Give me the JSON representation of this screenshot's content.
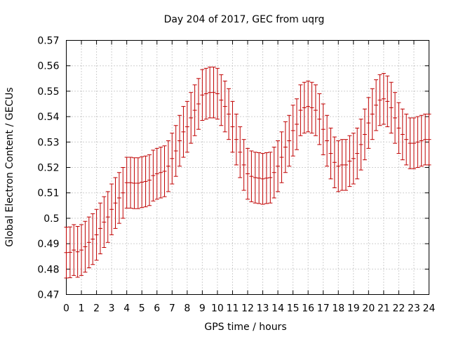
{
  "chart_data": {
    "type": "scatter",
    "title": "Day 204 of 2017, GEC from uqrg",
    "xlabel": "GPS time / hours",
    "ylabel": "Global Electron Content / GECUs",
    "xlim": [
      0,
      24
    ],
    "ylim": [
      0.47,
      0.57
    ],
    "x_ticks": [
      "0",
      "1",
      "2",
      "3",
      "4",
      "5",
      "6",
      "7",
      "8",
      "9",
      "10",
      "11",
      "12",
      "13",
      "14",
      "15",
      "16",
      "17",
      "18",
      "19",
      "20",
      "21",
      "22",
      "23",
      "24"
    ],
    "y_ticks": [
      "0.47",
      "0.48",
      "0.49",
      "0.5",
      "0.51",
      "0.52",
      "0.53",
      "0.54",
      "0.55",
      "0.56",
      "0.57"
    ],
    "grid": true,
    "color": "#c00000",
    "x": [
      0,
      0.25,
      0.5,
      0.75,
      1,
      1.25,
      1.5,
      1.75,
      2,
      2.25,
      2.5,
      2.75,
      3,
      3.25,
      3.5,
      3.75,
      4,
      4.25,
      4.5,
      4.75,
      5,
      5.25,
      5.5,
      5.75,
      6,
      6.25,
      6.5,
      6.75,
      7,
      7.25,
      7.5,
      7.75,
      8,
      8.25,
      8.5,
      8.75,
      9,
      9.25,
      9.5,
      9.75,
      10,
      10.25,
      10.5,
      10.75,
      11,
      11.25,
      11.5,
      11.75,
      12,
      12.25,
      12.5,
      12.75,
      13,
      13.25,
      13.5,
      13.75,
      14,
      14.25,
      14.5,
      14.75,
      15,
      15.25,
      15.5,
      15.75,
      16,
      16.25,
      16.5,
      16.75,
      17,
      17.25,
      17.5,
      17.75,
      18,
      18.25,
      18.5,
      18.75,
      19,
      19.25,
      19.5,
      19.75,
      20,
      20.25,
      20.5,
      20.75,
      21,
      21.25,
      21.5,
      21.75,
      22,
      22.25,
      22.5,
      22.75,
      23,
      23.25,
      23.5,
      23.75,
      24
    ],
    "y": [
      0.4865,
      0.4866,
      0.4875,
      0.4868,
      0.4875,
      0.4888,
      0.4905,
      0.4918,
      0.4935,
      0.496,
      0.4985,
      0.5005,
      0.5035,
      0.506,
      0.508,
      0.51,
      0.514,
      0.514,
      0.5138,
      0.5138,
      0.5142,
      0.5145,
      0.515,
      0.5168,
      0.5175,
      0.518,
      0.5185,
      0.5205,
      0.5235,
      0.5265,
      0.5305,
      0.534,
      0.536,
      0.5395,
      0.5425,
      0.545,
      0.5485,
      0.549,
      0.5495,
      0.5495,
      0.549,
      0.5465,
      0.544,
      0.541,
      0.536,
      0.531,
      0.526,
      0.521,
      0.5175,
      0.5165,
      0.516,
      0.5158,
      0.5155,
      0.5158,
      0.516,
      0.518,
      0.5205,
      0.524,
      0.528,
      0.5305,
      0.5345,
      0.537,
      0.5425,
      0.5435,
      0.544,
      0.5435,
      0.5425,
      0.539,
      0.535,
      0.5305,
      0.5255,
      0.522,
      0.5205,
      0.521,
      0.521,
      0.5225,
      0.5235,
      0.5255,
      0.529,
      0.533,
      0.5375,
      0.541,
      0.5445,
      0.5465,
      0.547,
      0.546,
      0.5435,
      0.5395,
      0.5355,
      0.533,
      0.531,
      0.5295,
      0.5295,
      0.53,
      0.5305,
      0.531,
      0.531
    ],
    "error": 0.01
  }
}
